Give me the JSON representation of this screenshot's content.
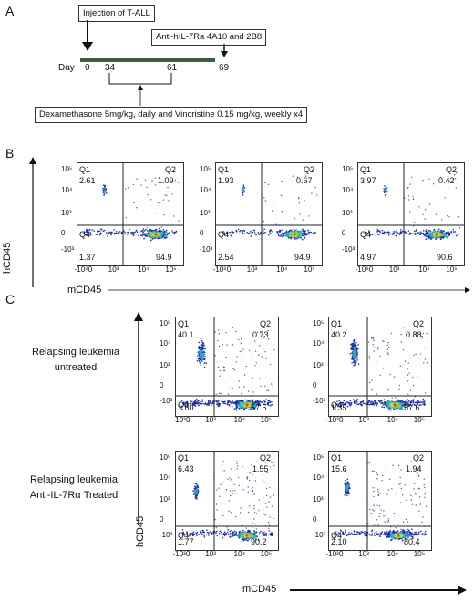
{
  "panels": {
    "a": "A",
    "b": "B",
    "c": "C"
  },
  "timeline": {
    "injection": "Injection of T-ALL",
    "antibody": "Anti-hIL-7Ra 4A10 and 2B8",
    "day_label": "Day",
    "days": [
      "0",
      "34",
      "61",
      "69"
    ],
    "chemo": "Dexamethasone 5mg/kg, daily and Vincristine 0.15 mg/kg, weekly x4"
  },
  "axes": {
    "b_y": "hCD45",
    "b_x": "mCD45",
    "c_y": "hCD45",
    "c_x": "mCD45",
    "y_ticks": [
      "10⁵",
      "10⁴",
      "10³",
      "0",
      "-10³"
    ],
    "x_ticks": [
      "-10³",
      "0",
      "10³",
      "10⁴",
      "10⁵"
    ]
  },
  "row_labels": {
    "untreated": [
      "Relapsing leukemia",
      "untreated"
    ],
    "treated": [
      "Relapsing leukemia",
      "Anti-IL-7Rα Treated"
    ]
  },
  "plots_b": [
    {
      "q1": "Q1",
      "q2": "Q2",
      "q4": "Q4",
      "v1": "2.61",
      "v2": "1.09",
      "v4": "1.37",
      "v3": "94.9"
    },
    {
      "q1": "Q1",
      "q2": "Q2",
      "q4": "Q4",
      "v1": "1.93",
      "v2": "0.67",
      "v4": "2.54",
      "v3": "94.9"
    },
    {
      "q1": "Q1",
      "q2": "Q2",
      "q4": "Q4",
      "v1": "3.97",
      "v2": "0.42",
      "v4": "4.97",
      "v3": "90.6"
    }
  ],
  "plots_c": [
    {
      "q1": "Q1",
      "q2": "Q2",
      "q4": "Q4",
      "v1": "40.1",
      "v2": "0.73",
      "v4": "1.60",
      "v3": "57.5"
    },
    {
      "q1": "Q1",
      "q2": "Q2",
      "q4": "Q4",
      "v1": "40.2",
      "v2": "0.88",
      "v4": "1.35",
      "v3": "57.6"
    },
    {
      "q1": "Q1",
      "q2": "Q2",
      "q4": "Q4",
      "v1": "6.43",
      "v2": "1.55",
      "v4": "1.77",
      "v3": "90.2"
    },
    {
      "q1": "Q1",
      "q2": "Q2",
      "q4": "Q4",
      "v1": "15.6",
      "v2": "1.94",
      "v4": "2.10",
      "v3": "80.4"
    }
  ]
}
